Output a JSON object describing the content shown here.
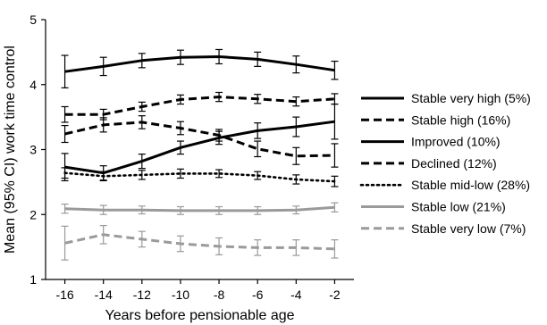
{
  "chart_data": {
    "type": "line",
    "xlabel": "Years before pensionable age",
    "ylabel": "Mean (95% CI) work time control",
    "x": [
      -16,
      -14,
      -12,
      -10,
      -8,
      -6,
      -4,
      -2
    ],
    "x_ticks": [
      "-16",
      "-14",
      "-12",
      "-10",
      "-8",
      "-6",
      "-4",
      "-2"
    ],
    "ylim": [
      1,
      5
    ],
    "y_ticks": [
      "1",
      "2",
      "3",
      "4",
      "5"
    ],
    "grid": false,
    "legend_position": "right",
    "series": [
      {
        "name": "Stable very high (5%)",
        "color": "#000000",
        "dash": "solid",
        "values": [
          4.2,
          4.28,
          4.37,
          4.42,
          4.43,
          4.39,
          4.31,
          4.22
        ],
        "ci": [
          0.25,
          0.14,
          0.11,
          0.11,
          0.11,
          0.11,
          0.13,
          0.14
        ]
      },
      {
        "name": "Stable high (16%)",
        "color": "#000000",
        "dash": "dashed",
        "values": [
          3.54,
          3.54,
          3.66,
          3.77,
          3.81,
          3.78,
          3.74,
          3.78
        ],
        "ci": [
          0.12,
          0.08,
          0.07,
          0.07,
          0.07,
          0.07,
          0.07,
          0.08
        ]
      },
      {
        "name": "Improved (10%)",
        "color": "#000000",
        "dash": "solid",
        "values": [
          2.73,
          2.64,
          2.82,
          3.03,
          3.18,
          3.29,
          3.35,
          3.43
        ],
        "ci": [
          0.21,
          0.11,
          0.11,
          0.1,
          0.1,
          0.12,
          0.15,
          0.27
        ]
      },
      {
        "name": "Declined (12%)",
        "color": "#000000",
        "dash": "dashed",
        "values": [
          3.24,
          3.38,
          3.42,
          3.33,
          3.22,
          3.01,
          2.9,
          2.91
        ],
        "ci": [
          0.13,
          0.11,
          0.1,
          0.1,
          0.09,
          0.12,
          0.13,
          0.18
        ]
      },
      {
        "name": "Stable mid-low (28%)",
        "color": "#000000",
        "dash": "dotted",
        "values": [
          2.64,
          2.59,
          2.61,
          2.63,
          2.63,
          2.6,
          2.54,
          2.51
        ],
        "ci": [
          0.08,
          0.07,
          0.07,
          0.07,
          0.06,
          0.06,
          0.07,
          0.08
        ]
      },
      {
        "name": "Stable low (21%)",
        "color": "#9a9a9a",
        "dash": "solid",
        "values": [
          2.09,
          2.07,
          2.07,
          2.06,
          2.06,
          2.06,
          2.07,
          2.11
        ],
        "ci": [
          0.07,
          0.07,
          0.06,
          0.06,
          0.06,
          0.06,
          0.06,
          0.07
        ]
      },
      {
        "name": "Stable very low (7%)",
        "color": "#9a9a9a",
        "dash": "dashed",
        "values": [
          1.56,
          1.69,
          1.62,
          1.55,
          1.51,
          1.49,
          1.49,
          1.47
        ],
        "ci": [
          0.26,
          0.14,
          0.12,
          0.12,
          0.13,
          0.12,
          0.12,
          0.14
        ]
      }
    ]
  }
}
